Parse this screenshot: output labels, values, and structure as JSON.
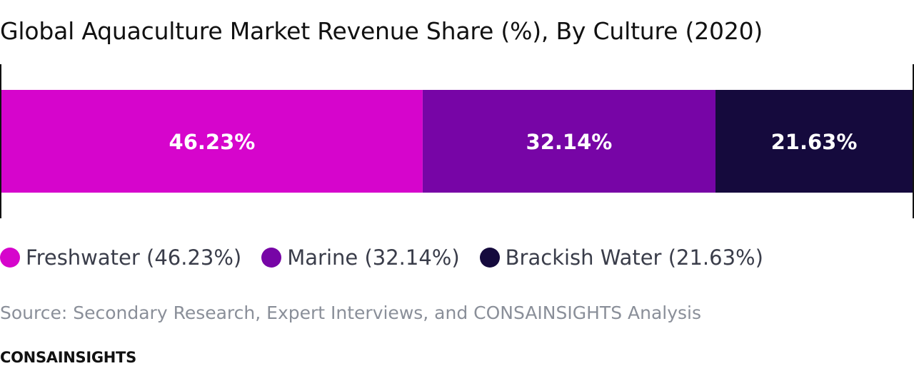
{
  "chart_data": {
    "type": "bar",
    "orientation": "horizontal-stacked",
    "title": "Global Aquaculture Market Revenue Share (%), By Culture (2020)",
    "series": [
      {
        "name": "Freshwater",
        "value": 46.23,
        "label": "46.23%",
        "legend": "Freshwater (46.23%)",
        "color": "#d605cc"
      },
      {
        "name": "Marine",
        "value": 32.14,
        "label": "32.14%",
        "legend": "Marine (32.14%)",
        "color": "#7705a6"
      },
      {
        "name": "Brackish Water",
        "value": 21.63,
        "label": "21.63%",
        "legend": "Brackish Water (21.63%)",
        "color": "#150a3d"
      }
    ],
    "xlim": [
      0,
      100
    ],
    "legend_position": "bottom-left",
    "grid": false
  },
  "source_text": "Source: Secondary Research, Expert Interviews, and CONSAINSIGHTS Analysis",
  "brand_text": "CONSAINSIGHTS"
}
